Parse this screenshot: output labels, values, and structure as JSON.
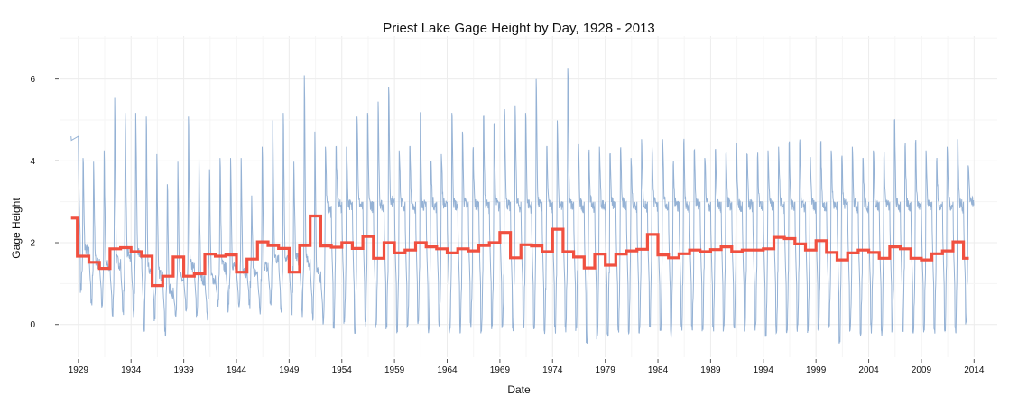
{
  "chart_data": {
    "type": "line",
    "title": "Priest Lake Gage Height by Day, 1928 - 2013",
    "xlabel": "Date",
    "ylabel": "Gage Height",
    "xlim": [
      1927.3,
      2016.2
    ],
    "ylim": [
      -0.8,
      7.05
    ],
    "x_ticks": [
      1929,
      1934,
      1939,
      1944,
      1949,
      1954,
      1959,
      1964,
      1969,
      1974,
      1979,
      1984,
      1989,
      1994,
      1999,
      2004,
      2009,
      2014
    ],
    "y_ticks": [
      0,
      2,
      4,
      6
    ],
    "grid": true,
    "colors": {
      "daily": "#8AAAD0",
      "annual_mean": "#F05040",
      "grid": "#ECECEC"
    },
    "series": [
      {
        "style": "line",
        "description_note": "",
        "yearly": [
          {
            "year": 1928,
            "peak": 4.6,
            "low": 4.6,
            "base": 4.6
          },
          {
            "year": 1929,
            "peak": 4.3,
            "low": 0.9,
            "base": 1.9
          },
          {
            "year": 1930,
            "peak": 4.2,
            "low": 0.5,
            "base": 1.6
          },
          {
            "year": 1931,
            "peak": 4.5,
            "low": 0.5,
            "base": 1.5
          },
          {
            "year": 1932,
            "peak": 5.9,
            "low": 0.3,
            "base": 1.6
          },
          {
            "year": 1933,
            "peak": 5.5,
            "low": 0.3,
            "base": 1.8
          },
          {
            "year": 1934,
            "peak": 5.5,
            "low": 0.3,
            "base": 1.8
          },
          {
            "year": 1935,
            "peak": 5.4,
            "low": -0.1,
            "base": 1.4
          },
          {
            "year": 1936,
            "peak": 4.4,
            "low": 0.2,
            "base": 1.3
          },
          {
            "year": 1937,
            "peak": 3.6,
            "low": -0.2,
            "base": 0.9
          },
          {
            "year": 1938,
            "peak": 4.2,
            "low": 0.2,
            "base": 1.2
          },
          {
            "year": 1939,
            "peak": 5.4,
            "low": 0.3,
            "base": 1.5
          },
          {
            "year": 1940,
            "peak": 4.3,
            "low": 0.2,
            "base": 1.2
          },
          {
            "year": 1941,
            "peak": 4.0,
            "low": 0.2,
            "base": 1.2
          },
          {
            "year": 1942,
            "peak": 4.3,
            "low": 0.5,
            "base": 1.5
          },
          {
            "year": 1943,
            "peak": 4.3,
            "low": 0.4,
            "base": 1.5
          },
          {
            "year": 1944,
            "peak": 4.3,
            "low": 0.4,
            "base": 1.4
          },
          {
            "year": 1945,
            "peak": 3.3,
            "low": 0.5,
            "base": 1.3
          },
          {
            "year": 1946,
            "peak": 4.6,
            "low": 0.3,
            "base": 1.5
          },
          {
            "year": 1947,
            "peak": 5.3,
            "low": 0.5,
            "base": 1.7
          },
          {
            "year": 1948,
            "peak": 5.5,
            "low": 0.4,
            "base": 1.7
          },
          {
            "year": 1949,
            "peak": 4.2,
            "low": 0.2,
            "base": 1.7
          },
          {
            "year": 1950,
            "peak": 6.5,
            "low": 0.3,
            "base": 1.6
          },
          {
            "year": 1951,
            "peak": 5.0,
            "low": 0.2,
            "base": 1.3
          },
          {
            "year": 1952,
            "peak": 4.6,
            "low": 0.1,
            "base": 2.9
          },
          {
            "year": 1953,
            "peak": 4.6,
            "low": 0.0,
            "base": 3.0
          },
          {
            "year": 1954,
            "peak": 4.6,
            "low": 0.1,
            "base": 3.0
          },
          {
            "year": 1955,
            "peak": 5.4,
            "low": -0.1,
            "base": 3.0
          },
          {
            "year": 1956,
            "peak": 5.5,
            "low": 0.0,
            "base": 3.0
          },
          {
            "year": 1957,
            "peak": 5.8,
            "low": -0.1,
            "base": 3.0
          },
          {
            "year": 1958,
            "peak": 6.2,
            "low": 0.0,
            "base": 3.1
          },
          {
            "year": 1959,
            "peak": 4.5,
            "low": -0.1,
            "base": 3.0
          },
          {
            "year": 1960,
            "peak": 4.6,
            "low": -0.1,
            "base": 3.0
          },
          {
            "year": 1961,
            "peak": 5.5,
            "low": 0.0,
            "base": 3.0
          },
          {
            "year": 1962,
            "peak": 4.2,
            "low": -0.1,
            "base": 3.0
          },
          {
            "year": 1963,
            "peak": 4.4,
            "low": 0.0,
            "base": 3.0
          },
          {
            "year": 1964,
            "peak": 5.5,
            "low": -0.1,
            "base": 3.0
          },
          {
            "year": 1965,
            "peak": 5.0,
            "low": -0.1,
            "base": 3.0
          },
          {
            "year": 1966,
            "peak": 4.5,
            "low": 0.0,
            "base": 3.0
          },
          {
            "year": 1967,
            "peak": 5.4,
            "low": -0.1,
            "base": 3.0
          },
          {
            "year": 1968,
            "peak": 5.2,
            "low": 0.0,
            "base": 3.0
          },
          {
            "year": 1969,
            "peak": 5.6,
            "low": 0.0,
            "base": 3.0
          },
          {
            "year": 1970,
            "peak": 5.7,
            "low": -0.1,
            "base": 3.0
          },
          {
            "year": 1971,
            "peak": 5.5,
            "low": 0.0,
            "base": 3.0
          },
          {
            "year": 1972,
            "peak": 6.4,
            "low": -0.1,
            "base": 3.0
          },
          {
            "year": 1973,
            "peak": 4.6,
            "low": -0.2,
            "base": 3.0
          },
          {
            "year": 1974,
            "peak": 5.3,
            "low": -0.1,
            "base": 3.0
          },
          {
            "year": 1975,
            "peak": 6.7,
            "low": -0.1,
            "base": 3.0
          },
          {
            "year": 1976,
            "peak": 4.6,
            "low": -0.1,
            "base": 3.0
          },
          {
            "year": 1977,
            "peak": 4.4,
            "low": -0.4,
            "base": 3.0
          },
          {
            "year": 1978,
            "peak": 4.6,
            "low": -0.3,
            "base": 3.0
          },
          {
            "year": 1979,
            "peak": 4.4,
            "low": -0.2,
            "base": 3.0
          },
          {
            "year": 1980,
            "peak": 4.5,
            "low": -0.1,
            "base": 3.0
          },
          {
            "year": 1981,
            "peak": 4.3,
            "low": -0.1,
            "base": 3.0
          },
          {
            "year": 1982,
            "peak": 4.8,
            "low": -0.1,
            "base": 3.0
          },
          {
            "year": 1983,
            "peak": 4.6,
            "low": 0.0,
            "base": 3.0
          },
          {
            "year": 1984,
            "peak": 4.8,
            "low": -0.1,
            "base": 3.0
          },
          {
            "year": 1985,
            "peak": 4.1,
            "low": -0.2,
            "base": 3.0
          },
          {
            "year": 1986,
            "peak": 4.7,
            "low": -0.1,
            "base": 3.0
          },
          {
            "year": 1987,
            "peak": 4.5,
            "low": -0.1,
            "base": 3.0
          },
          {
            "year": 1988,
            "peak": 4.3,
            "low": -0.1,
            "base": 3.0
          },
          {
            "year": 1989,
            "peak": 4.5,
            "low": -0.1,
            "base": 3.0
          },
          {
            "year": 1990,
            "peak": 4.4,
            "low": -0.1,
            "base": 3.0
          },
          {
            "year": 1991,
            "peak": 4.6,
            "low": -0.1,
            "base": 3.0
          },
          {
            "year": 1992,
            "peak": 4.4,
            "low": -0.1,
            "base": 3.0
          },
          {
            "year": 1993,
            "peak": 4.3,
            "low": -0.1,
            "base": 3.0
          },
          {
            "year": 1994,
            "peak": 4.5,
            "low": -0.2,
            "base": 3.0
          },
          {
            "year": 1995,
            "peak": 4.6,
            "low": -0.1,
            "base": 3.0
          },
          {
            "year": 1996,
            "peak": 4.7,
            "low": -0.1,
            "base": 3.0
          },
          {
            "year": 1997,
            "peak": 4.7,
            "low": -0.1,
            "base": 3.0
          },
          {
            "year": 1998,
            "peak": 4.3,
            "low": -0.1,
            "base": 3.0
          },
          {
            "year": 1999,
            "peak": 4.7,
            "low": -0.1,
            "base": 3.0
          },
          {
            "year": 2000,
            "peak": 4.5,
            "low": -0.1,
            "base": 3.0
          },
          {
            "year": 2001,
            "peak": 4.3,
            "low": -0.4,
            "base": 3.0
          },
          {
            "year": 2002,
            "peak": 4.6,
            "low": -0.1,
            "base": 3.0
          },
          {
            "year": 2003,
            "peak": 4.3,
            "low": -0.2,
            "base": 3.0
          },
          {
            "year": 2004,
            "peak": 4.5,
            "low": -0.1,
            "base": 3.0
          },
          {
            "year": 2005,
            "peak": 4.3,
            "low": -0.2,
            "base": 3.0
          },
          {
            "year": 2006,
            "peak": 5.3,
            "low": -0.1,
            "base": 3.0
          },
          {
            "year": 2007,
            "peak": 4.6,
            "low": -0.1,
            "base": 3.0
          },
          {
            "year": 2008,
            "peak": 4.7,
            "low": -0.1,
            "base": 3.0
          },
          {
            "year": 2009,
            "peak": 4.5,
            "low": -0.1,
            "base": 3.0
          },
          {
            "year": 2010,
            "peak": 4.2,
            "low": -0.1,
            "base": 3.0
          },
          {
            "year": 2011,
            "peak": 4.6,
            "low": -0.1,
            "base": 3.0
          },
          {
            "year": 2012,
            "peak": 4.8,
            "low": -0.1,
            "base": 3.0
          },
          {
            "year": 2013,
            "peak": 4.1,
            "low": 0.1,
            "base": 3.1
          }
        ]
      },
      {
        "style": "step",
        "x": [
          1928.3,
          1928.9,
          1930.0,
          1931.0,
          1932.0,
          1933.0,
          1934.0,
          1935.0,
          1936.0,
          1937.0,
          1938.0,
          1939.0,
          1940.0,
          1941.0,
          1942.0,
          1943.0,
          1944.0,
          1945.0,
          1946.0,
          1947.0,
          1948.0,
          1949.0,
          1950.0,
          1951.0,
          1952.0,
          1953.0,
          1954.0,
          1955.0,
          1956.0,
          1957.0,
          1958.0,
          1959.0,
          1960.0,
          1961.0,
          1962.0,
          1963.0,
          1964.0,
          1965.0,
          1966.0,
          1967.0,
          1968.0,
          1969.0,
          1970.0,
          1971.0,
          1972.0,
          1973.0,
          1974.0,
          1975.0,
          1976.0,
          1977.0,
          1978.0,
          1979.0,
          1980.0,
          1981.0,
          1982.0,
          1983.0,
          1984.0,
          1985.0,
          1986.0,
          1987.0,
          1988.0,
          1989.0,
          1990.0,
          1991.0,
          1992.0,
          1993.0,
          1994.0,
          1995.0,
          1996.0,
          1997.0,
          1998.0,
          1999.0,
          2000.0,
          2001.0,
          2002.0,
          2003.0,
          2004.0,
          2005.0,
          2006.0,
          2007.0,
          2008.0,
          2009.0,
          2010.0,
          2011.0,
          2012.0,
          2013.0,
          2013.5
        ],
        "values": [
          2.6,
          1.67,
          1.52,
          1.37,
          1.85,
          1.88,
          1.78,
          1.67,
          0.95,
          1.18,
          1.65,
          1.18,
          1.24,
          1.72,
          1.67,
          1.7,
          1.28,
          1.6,
          2.02,
          1.93,
          1.86,
          1.28,
          1.93,
          2.65,
          1.92,
          1.89,
          2.0,
          1.86,
          2.15,
          1.62,
          2.0,
          1.75,
          1.82,
          2.0,
          1.9,
          1.85,
          1.75,
          1.85,
          1.8,
          1.93,
          2.0,
          2.25,
          1.63,
          1.95,
          1.92,
          1.78,
          2.33,
          1.78,
          1.65,
          1.38,
          1.72,
          1.45,
          1.72,
          1.8,
          1.84,
          2.2,
          1.7,
          1.63,
          1.73,
          1.82,
          1.78,
          1.83,
          1.9,
          1.78,
          1.82,
          1.82,
          1.85,
          2.13,
          2.1,
          1.97,
          1.82,
          2.05,
          1.76,
          1.58,
          1.75,
          1.82,
          1.76,
          1.62,
          1.9,
          1.85,
          1.62,
          1.58,
          1.73,
          1.8,
          2.02,
          1.62,
          1.62
        ]
      }
    ]
  }
}
